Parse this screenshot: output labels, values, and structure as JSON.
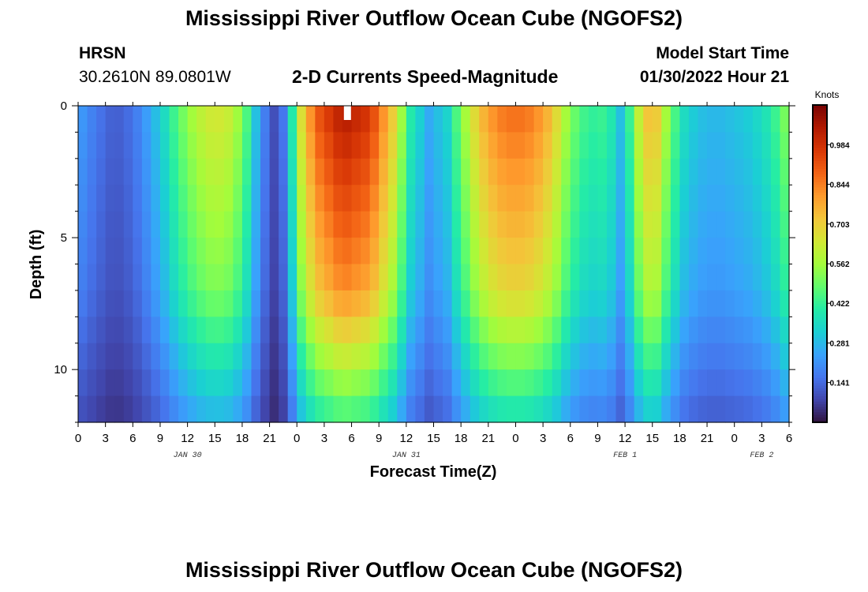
{
  "header": {
    "title": "Mississippi River Outflow Ocean Cube (NGOFS2)",
    "station_name": "HRSN",
    "station_coords": "30.2610N  89.0801W",
    "subtitle": "2-D Currents Speed-Magnitude",
    "model_start_label": "Model Start Time",
    "model_start_value": "01/30/2022 Hour 21"
  },
  "footer": {
    "title": "Mississippi River Outflow Ocean Cube (NGOFS2)"
  },
  "chart_data": {
    "type": "heatmap",
    "title": "2-D Currents Speed-Magnitude",
    "xlabel": "Forecast Time(Z)",
    "ylabel": "Depth (ft)",
    "x_units": "hours since JAN 30 00Z",
    "xlim": [
      0,
      78
    ],
    "ylim": [
      0,
      12
    ],
    "y_reversed": true,
    "x_tick_values": [
      0,
      3,
      6,
      9,
      12,
      15,
      18,
      21,
      24,
      27,
      30,
      33,
      36,
      39,
      42,
      45,
      48,
      51,
      54,
      57,
      60,
      63,
      66,
      69,
      72,
      75,
      78
    ],
    "x_tick_labels": [
      "0",
      "3",
      "6",
      "9",
      "12",
      "15",
      "18",
      "21",
      "0",
      "3",
      "6",
      "9",
      "12",
      "15",
      "18",
      "21",
      "0",
      "3",
      "6",
      "9",
      "12",
      "15",
      "18",
      "21",
      "0",
      "3",
      "6"
    ],
    "y_tick_values": [
      0,
      5,
      10
    ],
    "y_tick_labels": [
      "0",
      "5",
      "10"
    ],
    "day_labels": [
      {
        "text": "JAN 30",
        "at_hour": 12
      },
      {
        "text": "JAN 31",
        "at_hour": 36
      },
      {
        "text": "FEB 1",
        "at_hour": 60
      },
      {
        "text": "FEB 2",
        "at_hour": 75
      }
    ],
    "marker": {
      "description": "white marker at surface",
      "hour": 29.5,
      "depth": 0
    },
    "time_step_hours": 1,
    "depth_levels_ft": [
      0.5,
      1.5,
      2.5,
      3.5,
      4.5,
      5.5,
      6.5,
      7.5,
      8.5,
      9.5,
      10.5,
      11.5
    ],
    "surface_speed_profile": [
      {
        "hour": 0,
        "speed": 0.24
      },
      {
        "hour": 2,
        "speed": 0.17
      },
      {
        "hour": 4,
        "speed": 0.12
      },
      {
        "hour": 6,
        "speed": 0.16
      },
      {
        "hour": 8,
        "speed": 0.26
      },
      {
        "hour": 9.5,
        "speed": 0.36
      },
      {
        "hour": 11,
        "speed": 0.48
      },
      {
        "hour": 13,
        "speed": 0.6
      },
      {
        "hour": 15,
        "speed": 0.66
      },
      {
        "hour": 17,
        "speed": 0.62
      },
      {
        "hour": 18.5,
        "speed": 0.46
      },
      {
        "hour": 20,
        "speed": 0.22
      },
      {
        "hour": 21.5,
        "speed": 0.1
      },
      {
        "hour": 23,
        "speed": 0.2
      },
      {
        "hour": 24,
        "speed": 0.6
      },
      {
        "hour": 26,
        "speed": 0.9
      },
      {
        "hour": 29,
        "speed": 1.05
      },
      {
        "hour": 32,
        "speed": 0.98
      },
      {
        "hour": 34.5,
        "speed": 0.72
      },
      {
        "hour": 36.5,
        "speed": 0.4
      },
      {
        "hour": 38.5,
        "speed": 0.26
      },
      {
        "hour": 40.5,
        "speed": 0.34
      },
      {
        "hour": 42,
        "speed": 0.52
      },
      {
        "hour": 44,
        "speed": 0.74
      },
      {
        "hour": 46,
        "speed": 0.85
      },
      {
        "hour": 48,
        "speed": 0.88
      },
      {
        "hour": 50,
        "speed": 0.85
      },
      {
        "hour": 52,
        "speed": 0.74
      },
      {
        "hour": 54,
        "speed": 0.52
      },
      {
        "hour": 56,
        "speed": 0.42
      },
      {
        "hour": 58,
        "speed": 0.44
      },
      {
        "hour": 59.5,
        "speed": 0.3
      },
      {
        "hour": 61,
        "speed": 0.5
      },
      {
        "hour": 62,
        "speed": 0.74
      },
      {
        "hour": 63.5,
        "speed": 0.72
      },
      {
        "hour": 65,
        "speed": 0.5
      },
      {
        "hour": 66.5,
        "speed": 0.36
      },
      {
        "hour": 68,
        "speed": 0.3
      },
      {
        "hour": 70,
        "speed": 0.28
      },
      {
        "hour": 72,
        "speed": 0.3
      },
      {
        "hour": 74,
        "speed": 0.33
      },
      {
        "hour": 76,
        "speed": 0.4
      },
      {
        "hour": 78,
        "speed": 0.55
      }
    ],
    "colorbar": {
      "units": "Knots",
      "min": 0.0,
      "max": 1.125,
      "ticks": [
        0.141,
        0.281,
        0.422,
        0.562,
        0.703,
        0.844,
        0.984
      ]
    }
  },
  "colors": {
    "colormap": [
      "#30123b",
      "#4145ab",
      "#4675ed",
      "#39a2fc",
      "#1bcfd4",
      "#24eca6",
      "#61fc6c",
      "#a4fc3b",
      "#d1e834",
      "#f3c63a",
      "#fe9b2d",
      "#f36315",
      "#d93806",
      "#b11901",
      "#7a0403"
    ],
    "marker": "#ffffff"
  }
}
